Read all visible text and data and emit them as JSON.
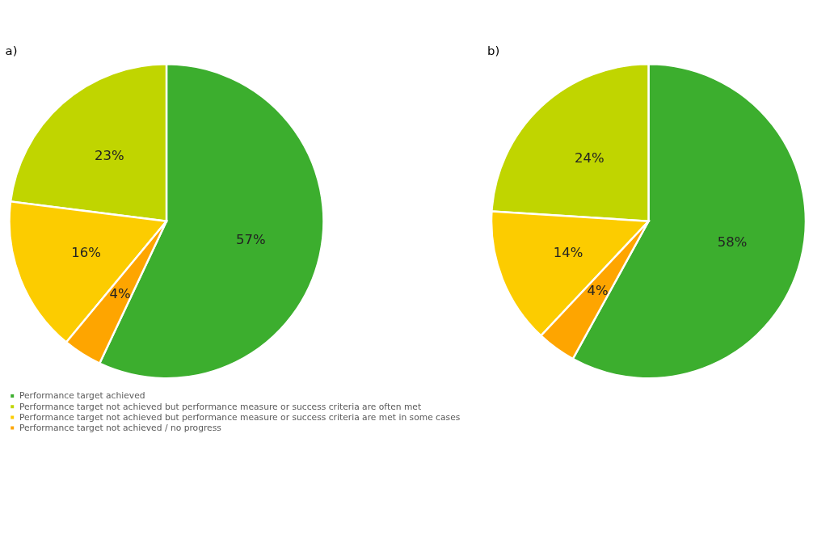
{
  "chart_data": [
    {
      "type": "pie",
      "title": "a)",
      "categories": [
        "Performance target achieved",
        "Performance target not achieved but performance measure or success criteria are often met",
        "Performance target not achieved but performance measure or success criteria are met in some cases",
        "Performance target not achieved / no progress"
      ],
      "values": [
        57,
        23,
        16,
        4
      ],
      "colors": [
        "#3cae2e",
        "#c0d500",
        "#fccc00",
        "#fea500"
      ],
      "legend": "bottom",
      "value_labels": [
        "57%",
        "23%",
        "16%",
        "4%"
      ]
    },
    {
      "type": "pie",
      "title": "b)",
      "categories": [
        null,
        null,
        null,
        null
      ],
      "values": [
        58,
        24,
        14,
        4
      ],
      "colors": [
        "#3cae2e",
        "#c0d500",
        "#fccc00",
        "#fea500"
      ],
      "legend": false,
      "value_labels": [
        "58%",
        "24%",
        "14%",
        "4%"
      ]
    }
  ]
}
